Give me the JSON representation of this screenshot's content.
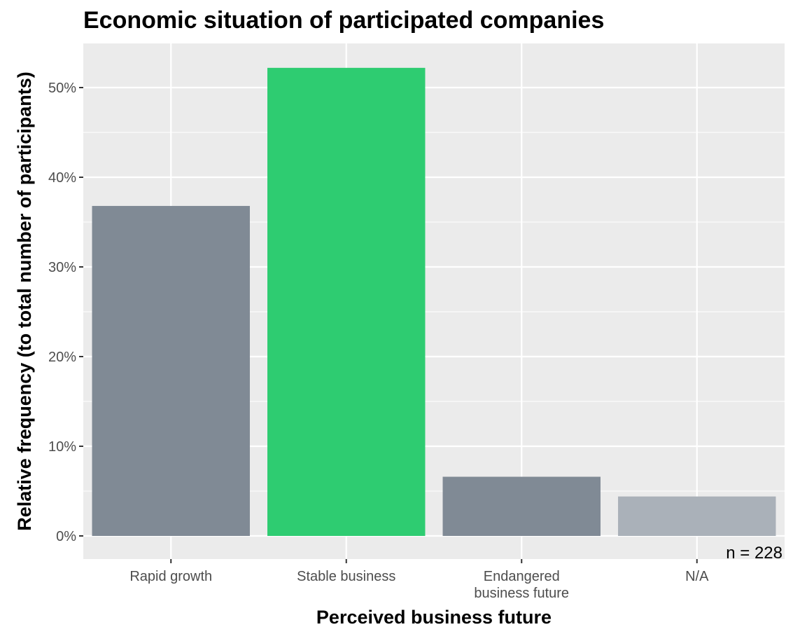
{
  "chart_data": {
    "type": "bar",
    "title": "Economic situation of participated companies",
    "xlabel": "Perceived business future",
    "ylabel": "Relative frequency (to total number of participants)",
    "categories": [
      "Rapid growth",
      "Stable business",
      "Endangered business future",
      "N/A"
    ],
    "category_label_lines": [
      [
        "Rapid growth"
      ],
      [
        "Stable business"
      ],
      [
        "Endangered",
        "business future"
      ],
      [
        "N/A"
      ]
    ],
    "values": [
      36.8,
      52.2,
      6.6,
      4.4
    ],
    "bar_colors": [
      "#808a95",
      "#2ecc71",
      "#808a95",
      "#aab1b9"
    ],
    "ylim": [
      0,
      55
    ],
    "yticks": [
      0,
      10,
      20,
      30,
      40,
      50
    ],
    "ytick_labels": [
      "0%",
      "10%",
      "20%",
      "30%",
      "40%",
      "50%"
    ],
    "grid": true,
    "panel_background": "#ebebeb",
    "grid_color": "#ffffff",
    "annotation": "n = 228"
  }
}
